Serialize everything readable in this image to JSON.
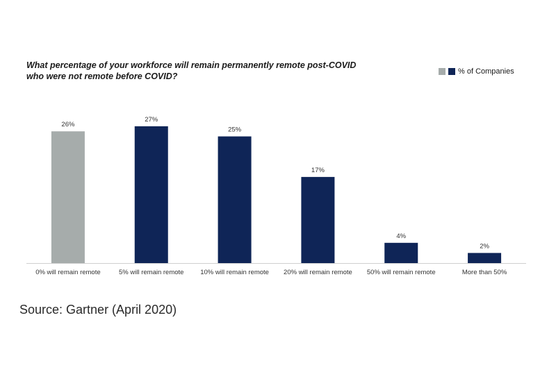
{
  "chart_data": {
    "type": "bar",
    "title_lines": [
      "What percentage of your workforce will remain permanently remote post-COVID",
      "who were not remote before COVID?"
    ],
    "categories": [
      "0% will remain remote",
      "5% will remain remote",
      "10% will remain remote",
      "20% will remain remote",
      "50% will remain remote",
      "More than 50%"
    ],
    "series": [
      {
        "name": "% of Companies",
        "values": [
          26,
          27,
          25,
          17,
          4,
          2
        ]
      }
    ],
    "value_labels": [
      "26%",
      "27%",
      "25%",
      "17%",
      "4%",
      "2%"
    ],
    "bar_colors": [
      "#a6acab",
      "#0f2557",
      "#0f2557",
      "#0f2557",
      "#0f2557",
      "#0f2557"
    ],
    "ylim": [
      0,
      30
    ],
    "grid": false,
    "legend_position": "top-right",
    "legend": {
      "colors": [
        "#a6acab",
        "#0f2557"
      ],
      "label": "% of Companies"
    }
  },
  "source": "Source: Gartner (April 2020)"
}
